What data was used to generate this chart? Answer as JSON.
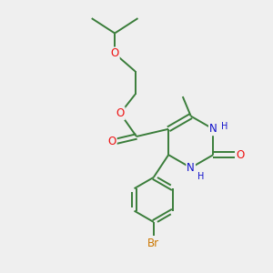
{
  "background_color": "#efefef",
  "bond_color": "#3a7d3a",
  "heteroatom_colors": {
    "O": "#ee1111",
    "N": "#1111cc",
    "Br": "#cc7700"
  },
  "figsize": [
    3.0,
    3.0
  ],
  "dpi": 100,
  "lw": 1.4,
  "fs": 8.5
}
